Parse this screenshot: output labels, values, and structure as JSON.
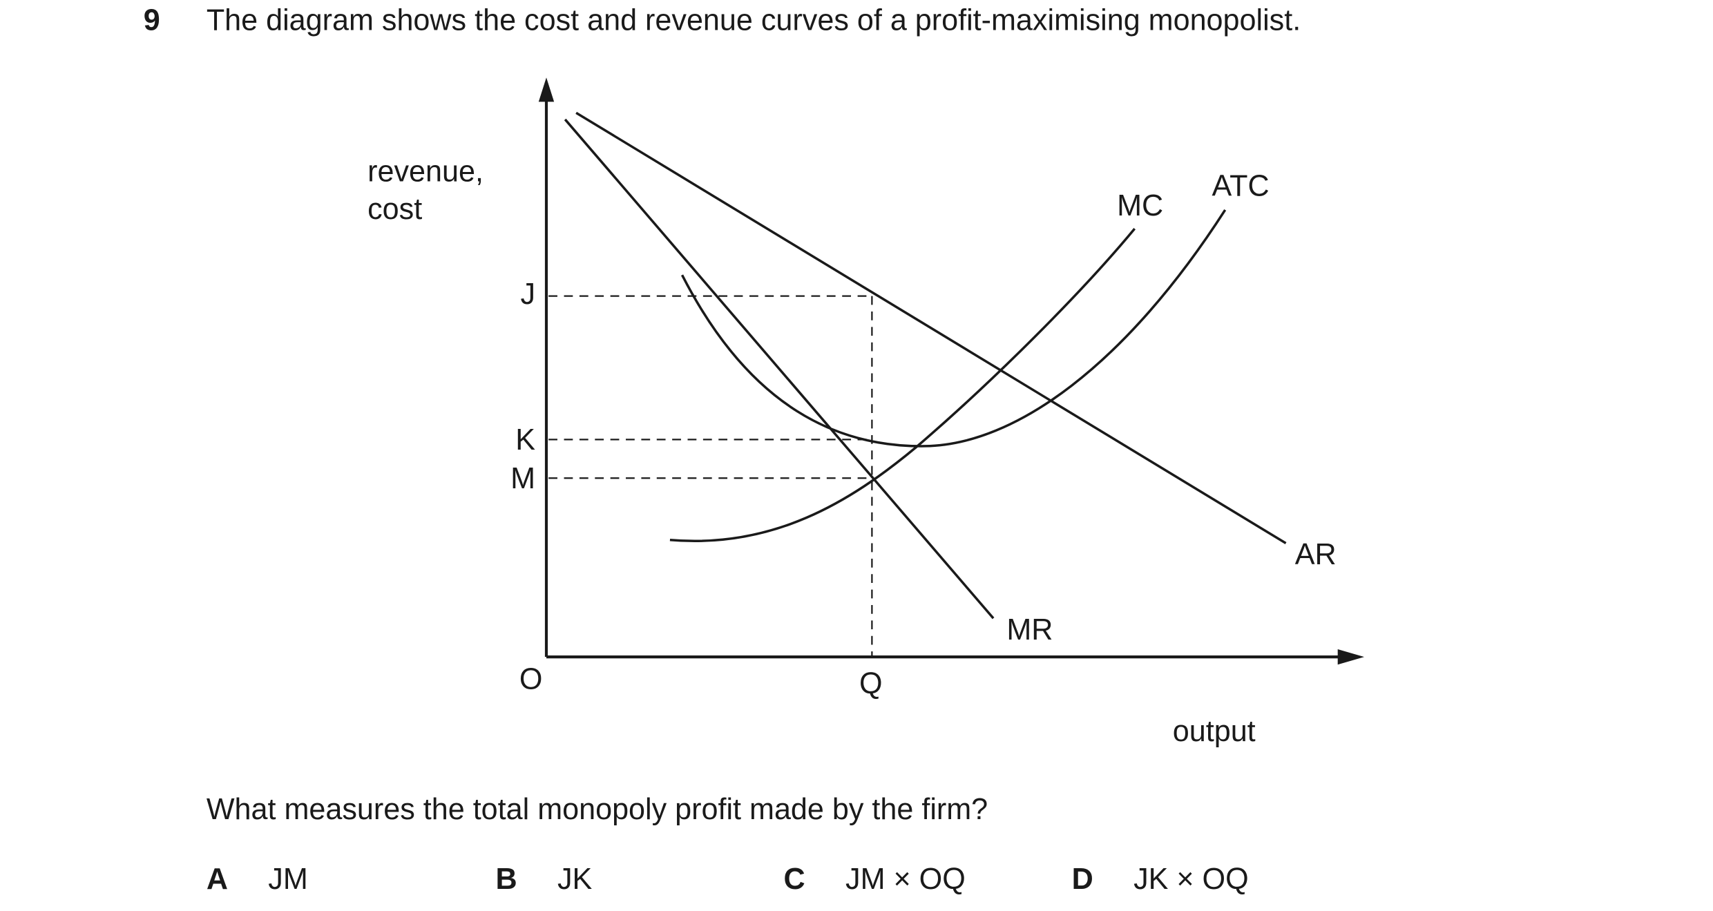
{
  "question": {
    "number": "9",
    "stem": "The diagram shows the cost and revenue curves of a profit-maximising monopolist.",
    "diagram": {
      "y_axis_label": [
        "revenue,",
        "cost"
      ],
      "x_axis_label": "output",
      "origin": "O",
      "price_levels": [
        "J",
        "K",
        "M"
      ],
      "quantity": "Q",
      "curve_labels": {
        "mc": "MC",
        "atc": "ATC",
        "ar": "AR",
        "mr": "MR"
      }
    },
    "prompt": "What measures the total monopoly profit made by the firm?",
    "options": [
      {
        "letter": "A",
        "text": "JM"
      },
      {
        "letter": "B",
        "text": "JK"
      },
      {
        "letter": "C",
        "text": "JM × OQ"
      },
      {
        "letter": "D",
        "text": "JK × OQ"
      }
    ]
  }
}
